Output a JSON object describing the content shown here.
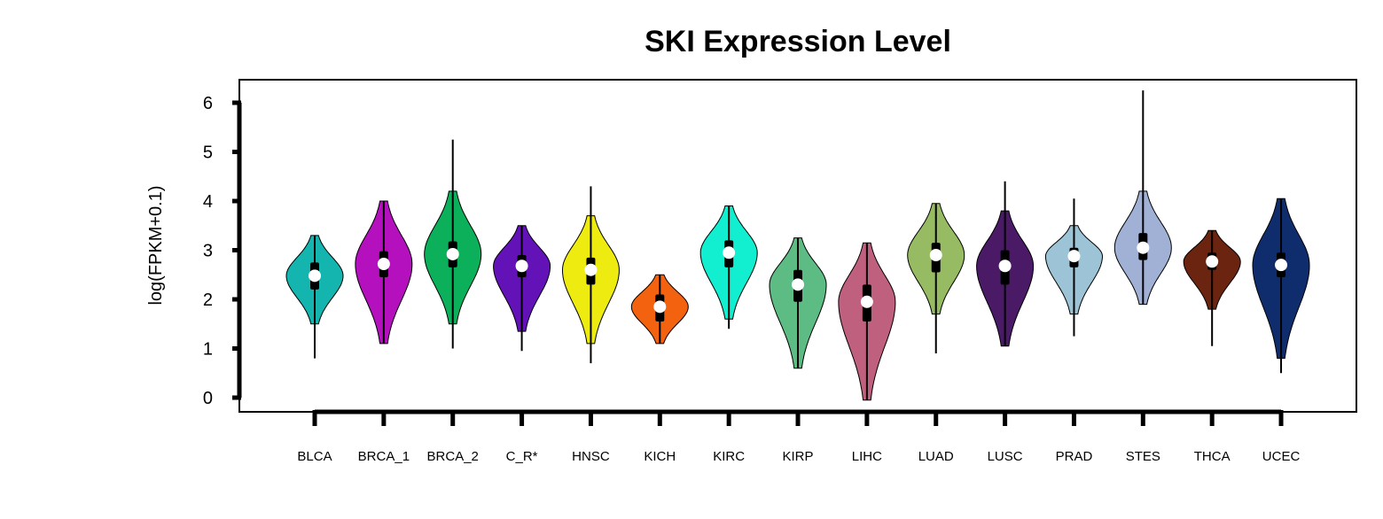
{
  "chart_data": {
    "type": "violin",
    "title": "SKI Expression Level",
    "ylabel": "log(FPKM+0.1)",
    "xlabel": "",
    "ylim": [
      0,
      6
    ],
    "yticks": [
      0,
      1,
      2,
      3,
      4,
      5,
      6
    ],
    "grid": false,
    "categories": [
      "BLCA",
      "BRCA_1",
      "BRCA_2",
      "C_R*",
      "HNSC",
      "KICH",
      "KIRC",
      "KIRP",
      "LIHC",
      "LUAD",
      "LUSC",
      "PRAD",
      "STES",
      "THCA",
      "UCEC"
    ],
    "colors": [
      "#13B5AE",
      "#B510BE",
      "#0CB05A",
      "#6312B8",
      "#EEEB10",
      "#F2620F",
      "#12EED0",
      "#5CBC84",
      "#C0607F",
      "#96BB62",
      "#4A1A66",
      "#9DC4D6",
      "#A1B0D5",
      "#6B2410",
      "#0F2D6D"
    ],
    "series": [
      {
        "name": "BLCA",
        "min": 0.8,
        "q1": 2.2,
        "median": 2.48,
        "q3": 2.75,
        "max": 3.3,
        "violin_min": 1.5,
        "violin_max": 3.3
      },
      {
        "name": "BRCA_1",
        "min": 1.1,
        "q1": 2.45,
        "median": 2.72,
        "q3": 2.98,
        "max": 4.0,
        "violin_min": 1.1,
        "violin_max": 4.0
      },
      {
        "name": "BRCA_2",
        "min": 1.0,
        "q1": 2.65,
        "median": 2.92,
        "q3": 3.18,
        "max": 5.25,
        "violin_min": 1.5,
        "violin_max": 4.2
      },
      {
        "name": "C_R*",
        "min": 0.95,
        "q1": 2.45,
        "median": 2.68,
        "q3": 2.9,
        "max": 3.5,
        "violin_min": 1.35,
        "violin_max": 3.5
      },
      {
        "name": "HNSC",
        "min": 0.7,
        "q1": 2.3,
        "median": 2.6,
        "q3": 2.85,
        "max": 4.3,
        "violin_min": 1.1,
        "violin_max": 3.7
      },
      {
        "name": "KICH",
        "min": 1.1,
        "q1": 1.55,
        "median": 1.85,
        "q3": 2.1,
        "max": 2.5,
        "violin_min": 1.1,
        "violin_max": 2.5
      },
      {
        "name": "KIRC",
        "min": 1.4,
        "q1": 2.65,
        "median": 2.95,
        "q3": 3.2,
        "max": 3.9,
        "violin_min": 1.6,
        "violin_max": 3.9
      },
      {
        "name": "KIRP",
        "min": 0.6,
        "q1": 1.95,
        "median": 2.3,
        "q3": 2.6,
        "max": 3.25,
        "violin_min": 0.6,
        "violin_max": 3.25
      },
      {
        "name": "LIHC",
        "min": -0.05,
        "q1": 1.55,
        "median": 1.95,
        "q3": 2.3,
        "max": 3.15,
        "violin_min": -0.05,
        "violin_max": 3.15
      },
      {
        "name": "LUAD",
        "min": 0.9,
        "q1": 2.55,
        "median": 2.9,
        "q3": 3.15,
        "max": 3.95,
        "violin_min": 1.7,
        "violin_max": 3.95
      },
      {
        "name": "LUSC",
        "min": 1.05,
        "q1": 2.3,
        "median": 2.68,
        "q3": 3.0,
        "max": 4.4,
        "violin_min": 1.05,
        "violin_max": 3.8
      },
      {
        "name": "PRAD",
        "min": 1.25,
        "q1": 2.65,
        "median": 2.88,
        "q3": 3.05,
        "max": 4.05,
        "violin_min": 1.7,
        "violin_max": 3.5
      },
      {
        "name": "STES",
        "min": 1.9,
        "q1": 2.8,
        "median": 3.05,
        "q3": 3.35,
        "max": 6.25,
        "violin_min": 1.9,
        "violin_max": 4.2
      },
      {
        "name": "THCA",
        "min": 1.05,
        "q1": 2.6,
        "median": 2.77,
        "q3": 2.95,
        "max": 3.4,
        "violin_min": 1.8,
        "violin_max": 3.4
      },
      {
        "name": "UCEC",
        "min": 0.5,
        "q1": 2.45,
        "median": 2.7,
        "q3": 2.95,
        "max": 4.05,
        "violin_min": 0.8,
        "violin_max": 4.05
      }
    ]
  }
}
